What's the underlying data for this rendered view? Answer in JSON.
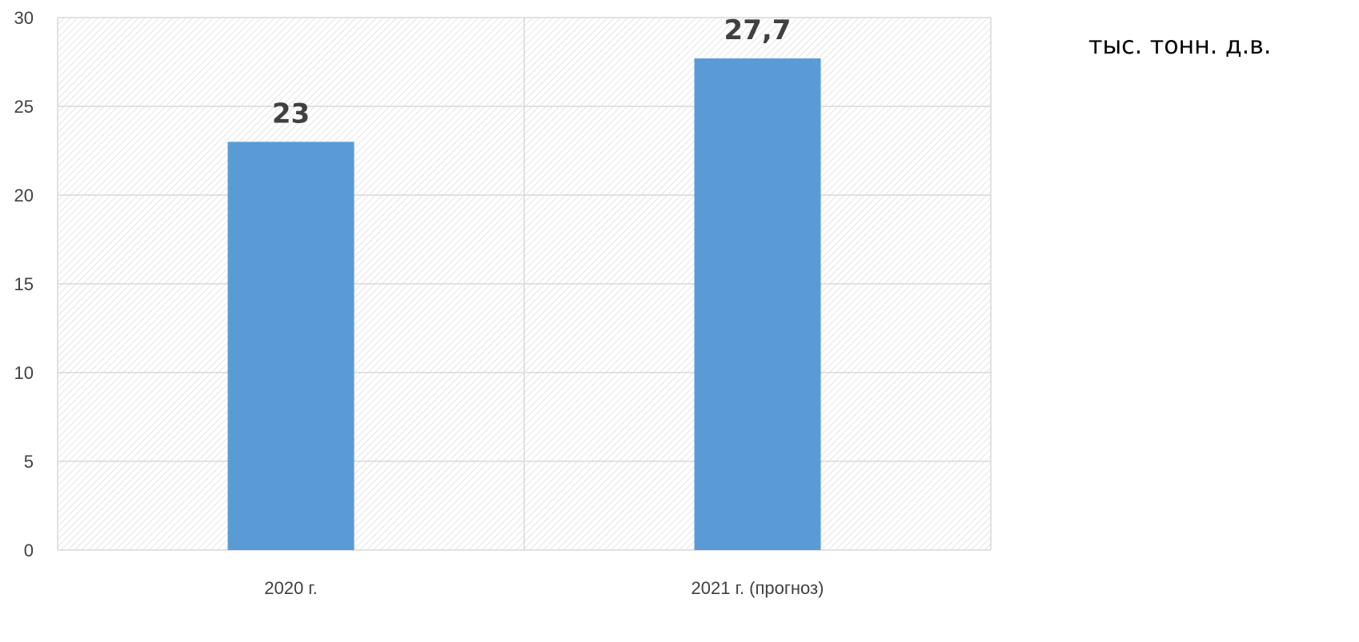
{
  "chart_data": {
    "type": "bar",
    "categories": [
      "2020 г.",
      "2021 г. (прогноз)"
    ],
    "series": [
      {
        "values": [
          23,
          27.7
        ],
        "data_labels": [
          "23",
          "27,7"
        ],
        "color": "#5B9BD5"
      }
    ],
    "y_ticks": [
      "0",
      "5",
      "10",
      "15",
      "20",
      "25",
      "30"
    ],
    "ylim": [
      0,
      30
    ],
    "y_tick_values": [
      0,
      5,
      10,
      15,
      20,
      25,
      30
    ],
    "grid": true,
    "background": "hatched",
    "unit_label": "тыс. тонн. д.в.",
    "title": "",
    "xlabel": "",
    "ylabel": ""
  }
}
